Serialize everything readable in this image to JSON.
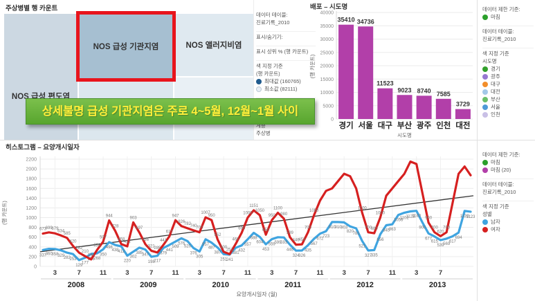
{
  "treemap": {
    "title": "주상병별 행 카운트",
    "annotation": "상세불명 급성 기관지염은 주로 4~5월, 12월~1월 사이",
    "blocks": [
      {
        "label": "NOS 급성 편도염",
        "color": "#ccd8e2",
        "highlighted": false
      },
      {
        "label": "NOS 급성 기관지염",
        "color": "#a6bfd1",
        "highlighted": true
      },
      {
        "label": "",
        "color": "#dce7ee",
        "highlighted": false
      },
      {
        "label": "NOS 앨러지비염",
        "color": "#dfe9f0",
        "highlighted": false
      },
      {
        "label": "",
        "color": "#e9f0f5",
        "highlighted": false
      }
    ]
  },
  "bar_panel": {
    "title": "배포 – 시도명"
  },
  "line_panel": {
    "title": "히스토그램 – 요양개시일자"
  },
  "legends": {
    "treemap": {
      "rows": [
        {
          "t": "데이터 테이블:"
        },
        {
          "t": "진료기록_2010"
        },
        {
          "t": "표시/숨기기:",
          "gap": true
        },
        {
          "t": "표시 상위 % (행 카운트)",
          "gap": true
        },
        {
          "t": "색 지정 기준",
          "gap": true
        },
        {
          "t": "(행 카운트)"
        },
        {
          "t": "최대값 (160765)",
          "radio": "filled"
        },
        {
          "t": "최소값 (82111)",
          "radio": "empty"
        },
        {
          "t": "크기 기준",
          "gap": true
        },
        {
          "t": "(행 카운트)"
        },
        {
          "t": "계층",
          "gap": true
        },
        {
          "t": "주상병"
        }
      ]
    },
    "bar": {
      "rows": [
        {
          "t": "데이터 제한 기준:"
        },
        {
          "t": "마침",
          "dot": "#2ca02c"
        },
        {
          "t": "데이터 테이블:",
          "gap": true
        },
        {
          "t": "진료기록_2010"
        },
        {
          "t": "색 지정 기준",
          "gap": true
        },
        {
          "t": "시도명"
        },
        {
          "t": "경기",
          "dot": "#33a02c"
        },
        {
          "t": "광주",
          "dot": "#9879d2"
        },
        {
          "t": "대구",
          "dot": "#f28e2b"
        },
        {
          "t": "대전",
          "dot": "#a3c8e8"
        },
        {
          "t": "부산",
          "dot": "#6abf69"
        },
        {
          "t": "서울",
          "dot": "#4f9ad8"
        },
        {
          "t": "인천",
          "dot": "#c9c0e6"
        }
      ]
    },
    "line": {
      "rows": [
        {
          "t": "데이터 제한 기준:"
        },
        {
          "t": "마침",
          "dot": "#2ca02c"
        },
        {
          "t": "마침 (20)",
          "dot": "#b23fa9"
        },
        {
          "t": "데이터 테이블:",
          "gap": true
        },
        {
          "t": "진료기록_2010"
        },
        {
          "t": "색 지정 기준",
          "gap": true
        },
        {
          "t": "성별"
        },
        {
          "t": "남자",
          "dot": "#3fa4e0"
        },
        {
          "t": "여자",
          "dot": "#d62020"
        }
      ]
    }
  },
  "chart_data": [
    {
      "type": "treemap",
      "title": "주상병별 행 카운트",
      "color_scale": {
        "max_label": "최대값",
        "max_value": 160765,
        "min_label": "최소값",
        "min_value": 82111
      },
      "nodes": [
        {
          "label": "NOS 급성 편도염"
        },
        {
          "label": "NOS 급성 기관지염",
          "highlighted": true
        },
        {
          "label": "NOS 앨러지비염"
        }
      ]
    },
    {
      "type": "bar",
      "title": "배포 – 시도명",
      "categories": [
        "경기",
        "서울",
        "대구",
        "부산",
        "광주",
        "인천",
        "대전"
      ],
      "values": [
        35410,
        34736,
        11523,
        9023,
        8740,
        7585,
        3729
      ],
      "xlabel": "시도명",
      "ylabel": "(행 카운트)",
      "ylim": [
        0,
        40000
      ],
      "ytick_step": 5000,
      "bar_color": "#b23fa9",
      "grid": true,
      "legend_position": "right"
    },
    {
      "type": "line",
      "title": "히스토그램 – 요양개시일자",
      "xlabel": "요양개시일자 (월)",
      "ylabel": "(행 카운트)",
      "ylim": [
        0,
        2200
      ],
      "ytick_step": 200,
      "grid": true,
      "legend_position": "right",
      "label_threshold": 1160,
      "years": [
        {
          "year": "2008",
          "ticks": [
            3,
            7,
            11
          ]
        },
        {
          "year": "2009",
          "ticks": [
            3,
            7,
            11
          ]
        },
        {
          "year": "2010",
          "ticks": [
            3,
            7,
            11
          ]
        },
        {
          "year": "2011",
          "ticks": [
            3,
            7,
            11
          ]
        },
        {
          "year": "2012",
          "ticks": [
            3,
            7,
            11
          ]
        },
        {
          "year": "2013",
          "ticks": [
            3,
            7
          ]
        }
      ],
      "series": [
        {
          "name": "남자",
          "color": "#3fa4e0",
          "values": [
            337,
            360,
            358,
            329,
            282,
            253,
            129,
            177,
            256,
            268,
            350,
            498,
            438,
            412,
            220,
            302,
            385,
            347,
            198,
            217,
            379,
            441,
            509,
            576,
            520,
            376,
            305,
            557,
            487,
            387,
            251,
            241,
            381,
            432,
            557,
            688,
            604,
            453,
            559,
            599,
            593,
            446,
            324,
            326,
            435,
            567,
            672,
            723,
            910,
            910,
            903,
            820,
            781,
            521,
            327,
            335,
            656,
            845,
            863,
            1056,
            1102,
            1128,
            1140,
            900,
            677,
            615,
            539,
            569,
            617,
            694,
            1139,
            1123
          ]
        },
        {
          "name": "여자",
          "color": "#d62020",
          "values": [
            673,
            699,
            679,
            634,
            585,
            420,
            282,
            210,
            144,
            338,
            507,
            944,
            728,
            458,
            412,
            903,
            697,
            456,
            321,
            285,
            441,
            617,
            947,
            826,
            782,
            740,
            700,
            1007,
            950,
            552,
            300,
            251,
            460,
            690,
            1000,
            1151,
            1050,
            650,
            950,
            1100,
            980,
            599,
            446,
            453,
            700,
            1050,
            1350,
            1550,
            1600,
            1750,
            1900,
            1850,
            1600,
            1100,
            700,
            680,
            1000,
            1450,
            1600,
            1750,
            1900,
            2150,
            2100,
            1500,
            900,
            700,
            620,
            700,
            1300,
            1900,
            2050,
            1870
          ]
        }
      ],
      "trend": {
        "start": 300,
        "end": 1450,
        "color": "#333333"
      }
    }
  ]
}
